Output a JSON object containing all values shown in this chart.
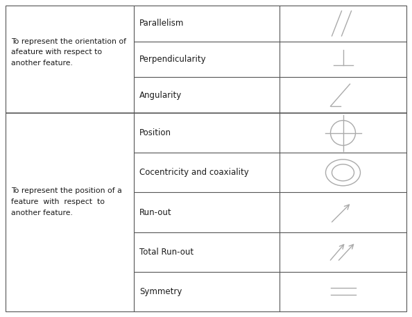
{
  "bg_color": "#ffffff",
  "border_color": "#555555",
  "text_color": "#1a1a1a",
  "col1_text_top": "To represent the orientation of\nafeature with respect to\nanother feature.",
  "col1_text_bottom": "To represent the position of a\nfeature  with  respect  to\nanother feature.",
  "rows_top": [
    "Parallelism",
    "Perpendicularity",
    "Angularity"
  ],
  "rows_bottom": [
    "Position",
    "Cocentricity and coaxiality",
    "Run-out",
    "Total Run-out",
    "Symmetry"
  ],
  "symbol_color": "#aaaaaa"
}
